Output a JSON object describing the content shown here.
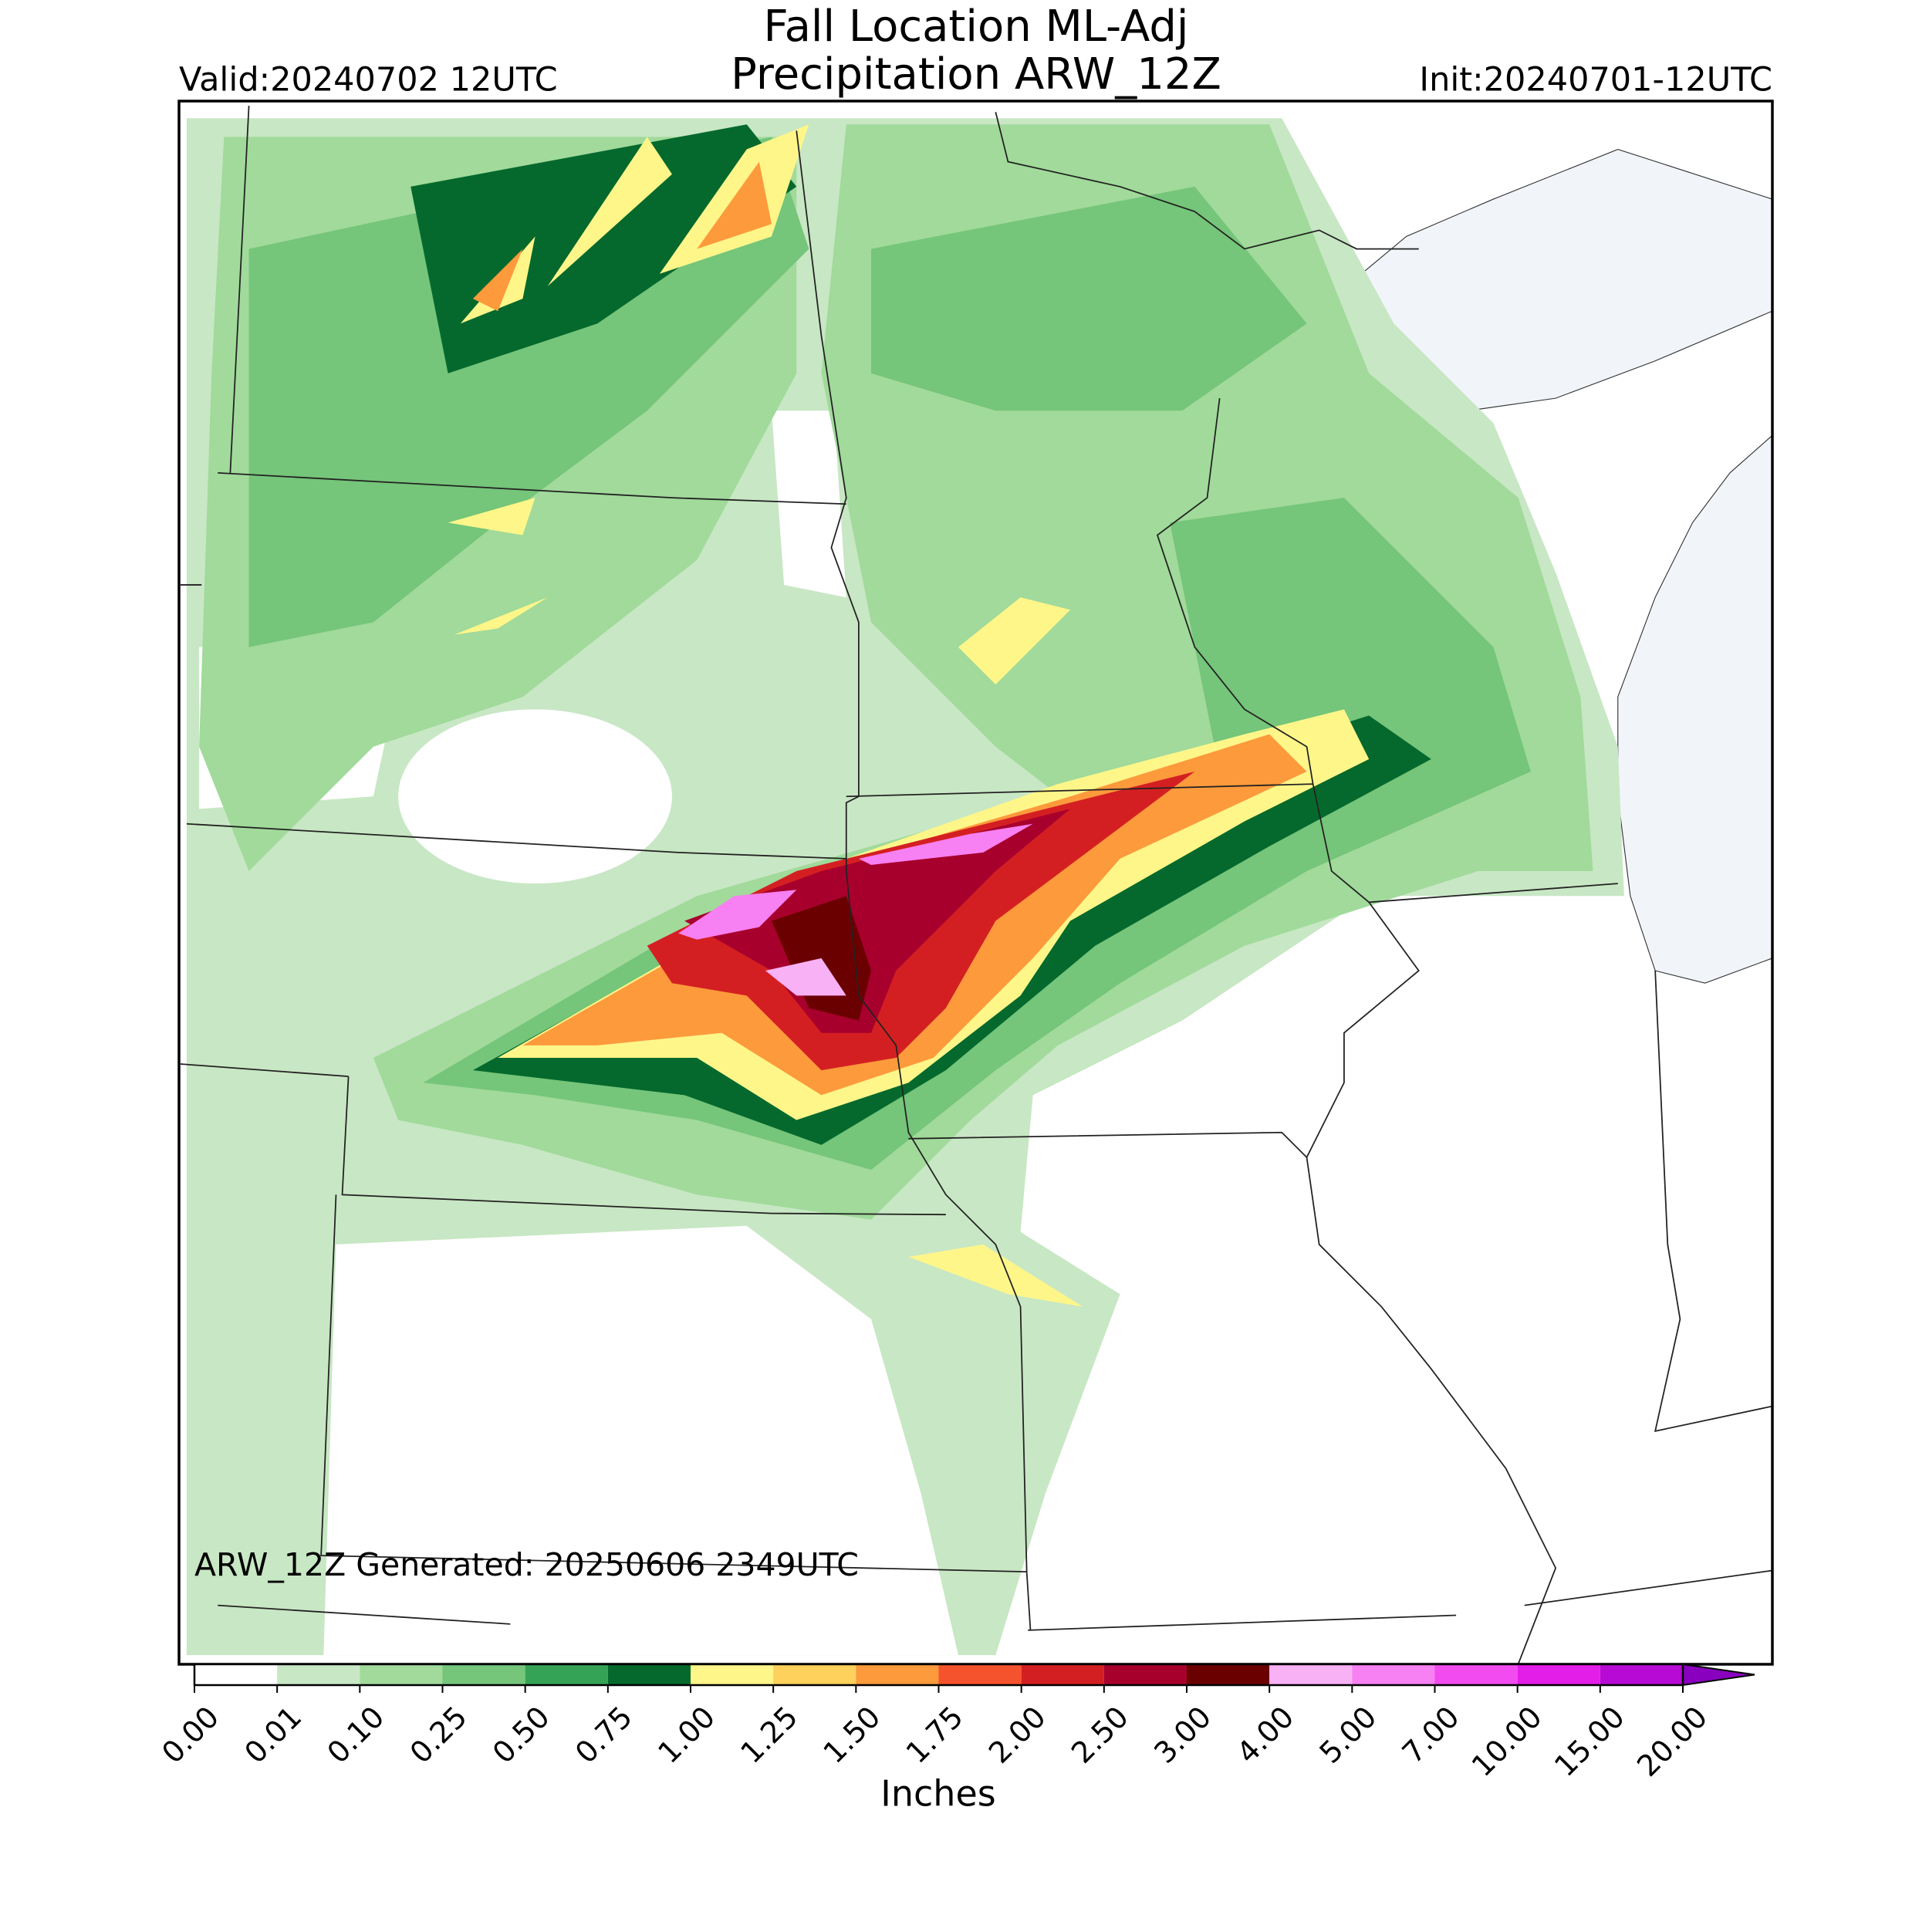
{
  "title": "Fall Location ML-Adj",
  "subtitle": "Precipitation ARW_12Z",
  "valid": "Valid:20240702 12UTC",
  "init": "Init:20240701-12UTC",
  "footnote": "ARW_12Z Generated: 20250606 2349UTC",
  "colorbar": {
    "label": "Inches",
    "ticks": [
      {
        "value": 0,
        "label": "0.00"
      },
      {
        "value": 0.01,
        "label": "0.01"
      },
      {
        "value": 0.1,
        "label": "0.10"
      },
      {
        "value": 0.25,
        "label": "0.25"
      },
      {
        "value": 0.5,
        "label": "0.50"
      },
      {
        "value": 0.75,
        "label": "0.75"
      },
      {
        "value": 1,
        "label": "1.00"
      },
      {
        "value": 1.25,
        "label": "1.25"
      },
      {
        "value": 1.5,
        "label": "1.50"
      },
      {
        "value": 1.75,
        "label": "1.75"
      },
      {
        "value": 2,
        "label": "2.00"
      },
      {
        "value": 2.5,
        "label": "2.50"
      },
      {
        "value": 3,
        "label": "3.00"
      },
      {
        "value": 4,
        "label": "4.00"
      },
      {
        "value": 5,
        "label": "5.00"
      },
      {
        "value": 7,
        "label": "7.00"
      },
      {
        "value": 10,
        "label": "10.00"
      },
      {
        "value": 15,
        "label": "15.00"
      },
      {
        "value": 20,
        "label": "20.00"
      }
    ],
    "colors": [
      "#ffffff",
      "#c8e7c4",
      "#a1da9b",
      "#75c57a",
      "#34a356",
      "#05692d",
      "#fff68a",
      "#fdd15c",
      "#fd9a3c",
      "#f5532d",
      "#d41f22",
      "#a8002d",
      "#6b0000",
      "#f9b1f6",
      "#f780f2",
      "#f24cf0",
      "#e21ee8",
      "#b70ad4"
    ],
    "extend_color": "#8a00bf"
  }
}
